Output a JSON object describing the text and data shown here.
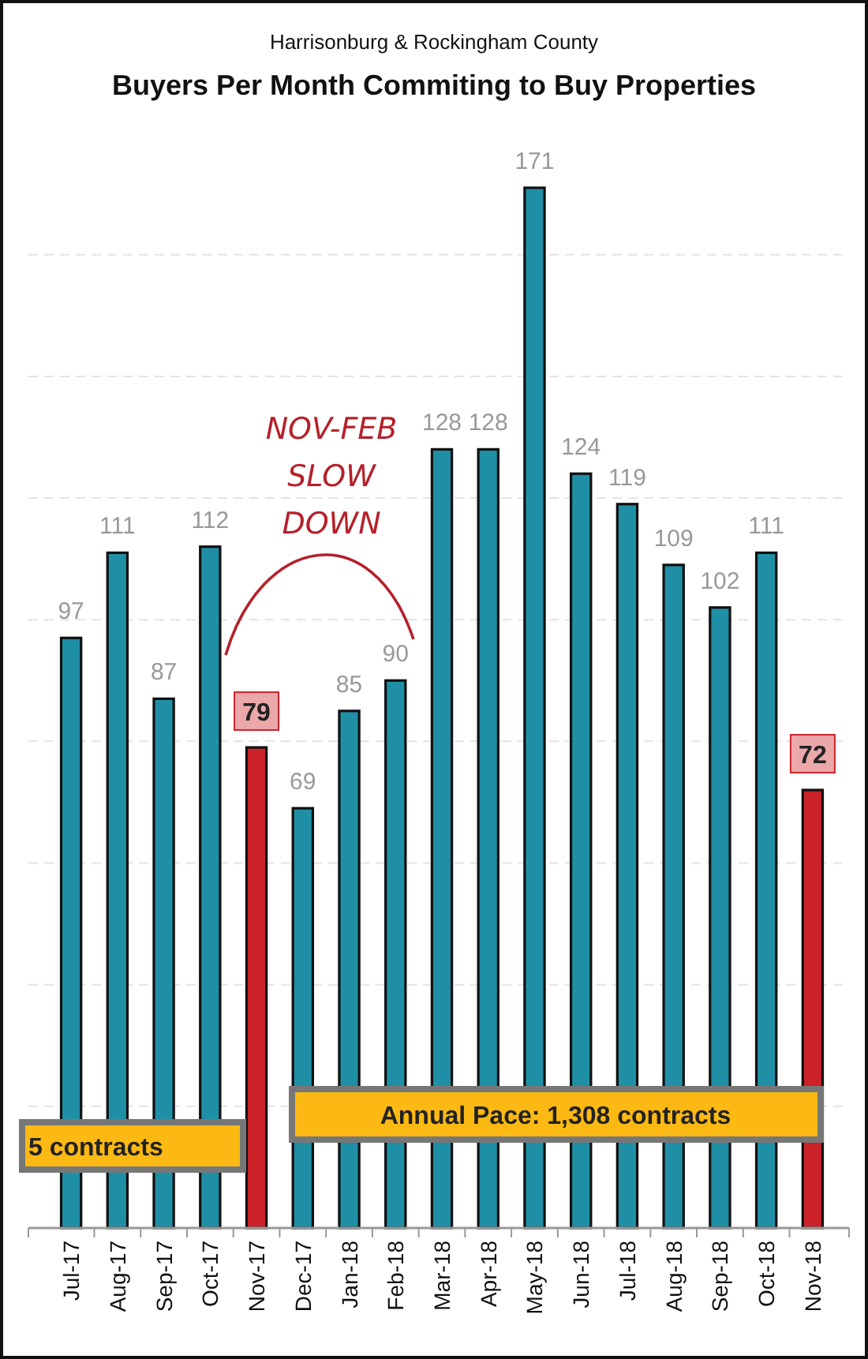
{
  "chart_data": {
    "type": "bar",
    "title": "Buyers Per Month Commiting to Buy Properties",
    "subtitle": "Harrisonburg & Rockingham County",
    "categories": [
      "Jul-17",
      "Aug-17",
      "Sep-17",
      "Oct-17",
      "Nov-17",
      "Dec-17",
      "Jan-18",
      "Feb-18",
      "Mar-18",
      "Apr-18",
      "May-18",
      "Jun-18",
      "Jul-18",
      "Aug-18",
      "Sep-18",
      "Oct-18",
      "Nov-18"
    ],
    "values": [
      97,
      111,
      87,
      112,
      79,
      69,
      85,
      90,
      128,
      128,
      171,
      124,
      119,
      109,
      102,
      111,
      72
    ],
    "colors": [
      "#1f8fa6",
      "#1f8fa6",
      "#1f8fa6",
      "#1f8fa6",
      "#cc2229",
      "#1f8fa6",
      "#1f8fa6",
      "#1f8fa6",
      "#1f8fa6",
      "#1f8fa6",
      "#1f8fa6",
      "#1f8fa6",
      "#1f8fa6",
      "#1f8fa6",
      "#1f8fa6",
      "#1f8fa6",
      "#cc2229"
    ],
    "yticks": [
      {
        "value": 0,
        "label": null
      },
      {
        "value": 20,
        "label": null
      },
      {
        "value": 40,
        "label": null
      },
      {
        "value": 60,
        "label": null
      },
      {
        "value": 80,
        "label": null
      },
      {
        "value": 100,
        "label": null
      },
      {
        "value": 120,
        "label": null
      },
      {
        "value": 140,
        "label": null
      },
      {
        "value": 160,
        "label": null
      }
    ],
    "grid": "y",
    "tick_labels": "x",
    "data_labels": true,
    "annotations": [
      "NOV-FEB SLOW DOWN",
      "Annual Pace: 1,308 contracts",
      "5 contracts"
    ]
  }
}
